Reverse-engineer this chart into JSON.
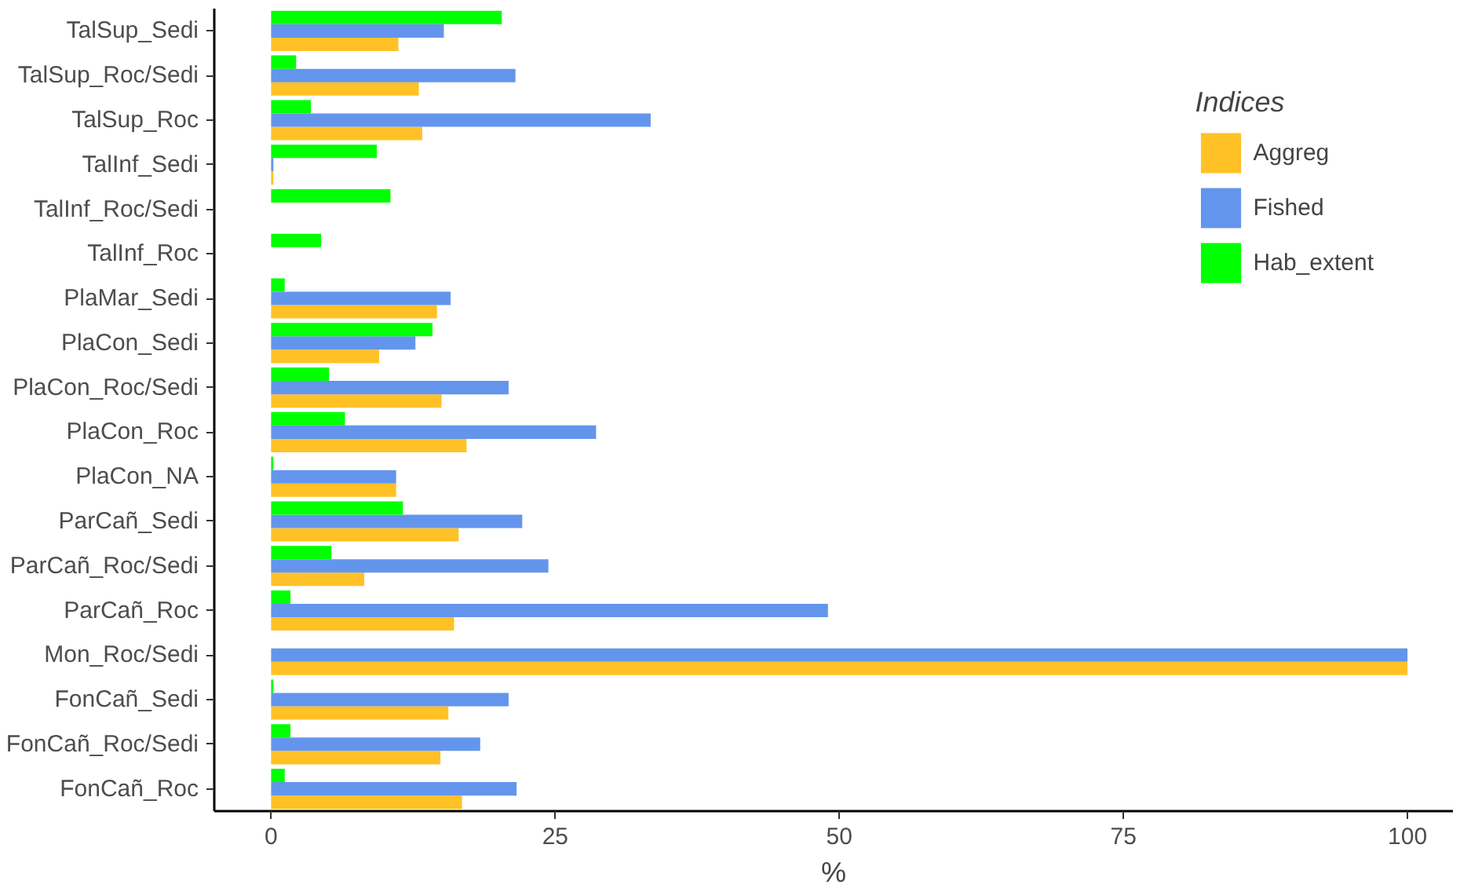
{
  "chart_data": {
    "type": "bar",
    "orientation": "horizontal",
    "xlabel": "%",
    "legend_title": "Indices",
    "legend": "top right",
    "categories": [
      "TalSup_Sedi",
      "TalSup_Roc/Sedi",
      "TalSup_Roc",
      "TalInf_Sedi",
      "TalInf_Roc/Sedi",
      "TalInf_Roc",
      "PlaMar_Sedi",
      "PlaCon_Sedi",
      "PlaCon_Roc/Sedi",
      "PlaCon_Roc",
      "PlaCon_NA",
      "ParCañ_Sedi",
      "ParCañ_Roc/Sedi",
      "ParCañ_Roc",
      "Mon_Roc/Sedi",
      "FonCañ_Sedi",
      "FonCañ_Roc/Sedi",
      "FonCañ_Roc"
    ],
    "series": [
      {
        "name": "Aggreg",
        "color": "#ffc125",
        "values": [
          11.2,
          13.0,
          13.3,
          0.2,
          0,
          0,
          14.6,
          9.5,
          15.0,
          17.2,
          11.0,
          16.5,
          8.2,
          16.1,
          100,
          15.6,
          14.9,
          16.8
        ]
      },
      {
        "name": "Fished",
        "color": "#6495ed",
        "values": [
          15.2,
          21.5,
          33.4,
          0.2,
          0,
          0,
          15.8,
          12.7,
          20.9,
          28.6,
          11.0,
          22.1,
          24.4,
          49.0,
          100,
          20.9,
          18.4,
          21.6
        ]
      },
      {
        "name": "Hab_extent",
        "color": "#00ff00",
        "values": [
          20.3,
          2.2,
          3.5,
          9.3,
          10.5,
          4.4,
          1.2,
          14.2,
          5.1,
          6.5,
          0.2,
          11.6,
          5.3,
          1.7,
          0,
          0.2,
          1.7,
          1.2
        ]
      }
    ],
    "xlim": [
      -5,
      104
    ],
    "xticks": [
      0,
      25,
      50,
      75,
      100
    ]
  }
}
